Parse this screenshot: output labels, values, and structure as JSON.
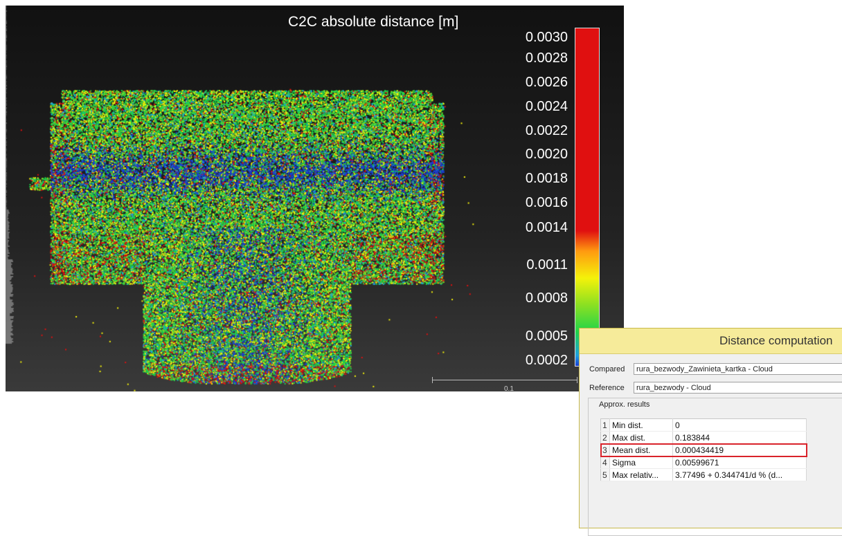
{
  "viewport": {
    "scale_title": "C2C absolute distance [m]",
    "colorbar_ticks": [
      "0.0030",
      "0.0028",
      "0.0026",
      "0.0024",
      "0.0022",
      "0.0020",
      "0.0018",
      "0.0016",
      "0.0014",
      "0.0011",
      "0.0008",
      "0.0005",
      "0.0002"
    ],
    "scale_bar_label": "0.1",
    "colors": {
      "low": "#1a3fd6",
      "mid_low": "#1fd44a",
      "mid": "#f4f20a",
      "high": "#e01010"
    }
  },
  "dialog": {
    "title": "Distance computation",
    "compared_label": "Compared",
    "compared_value": "rura_bezwody_Zawinieta_kartka - Cloud",
    "reference_label": "Reference",
    "reference_value": "rura_bezwody - Cloud",
    "group_title": "Approx. results",
    "rows": [
      {
        "idx": "1",
        "name": "Min dist.",
        "value": "0"
      },
      {
        "idx": "2",
        "name": "Max dist.",
        "value": "0.183844"
      },
      {
        "idx": "3",
        "name": "Mean dist.",
        "value": "0.000434419"
      },
      {
        "idx": "4",
        "name": "Sigma",
        "value": "0.00599671"
      },
      {
        "idx": "5",
        "name": "Max relativ...",
        "value": "3.77496 + 0.344741/d % (d..."
      }
    ],
    "highlighted_row": 2
  }
}
